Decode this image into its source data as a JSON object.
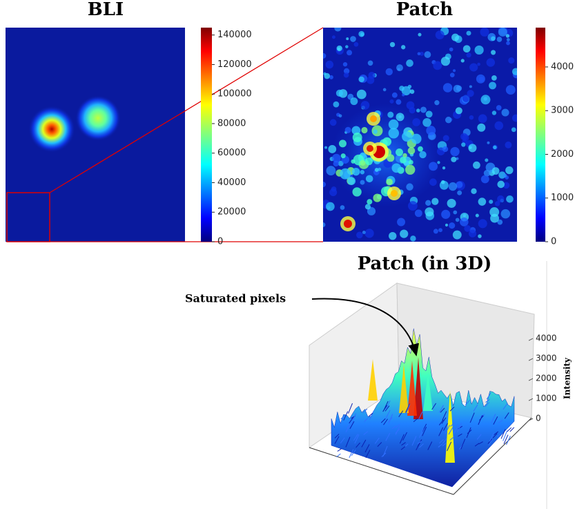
{
  "panels": [
    {
      "title": "BLI",
      "colorbar": {
        "lim": [
          0,
          145000
        ],
        "ticks": [
          0,
          20000,
          40000,
          60000,
          80000,
          100000,
          120000,
          140000
        ]
      }
    },
    {
      "title": "Patch",
      "colorbar": {
        "lim": [
          0,
          4900
        ],
        "ticks": [
          0,
          1000,
          2000,
          3000,
          4000
        ]
      }
    },
    {
      "title": "Patch (in 3D)",
      "annotation": "Saturated pixels",
      "zlabel": "Intensity",
      "zlim": [
        0,
        4900
      ],
      "zticks": [
        0,
        1000,
        2000,
        3000,
        4000
      ]
    }
  ]
}
